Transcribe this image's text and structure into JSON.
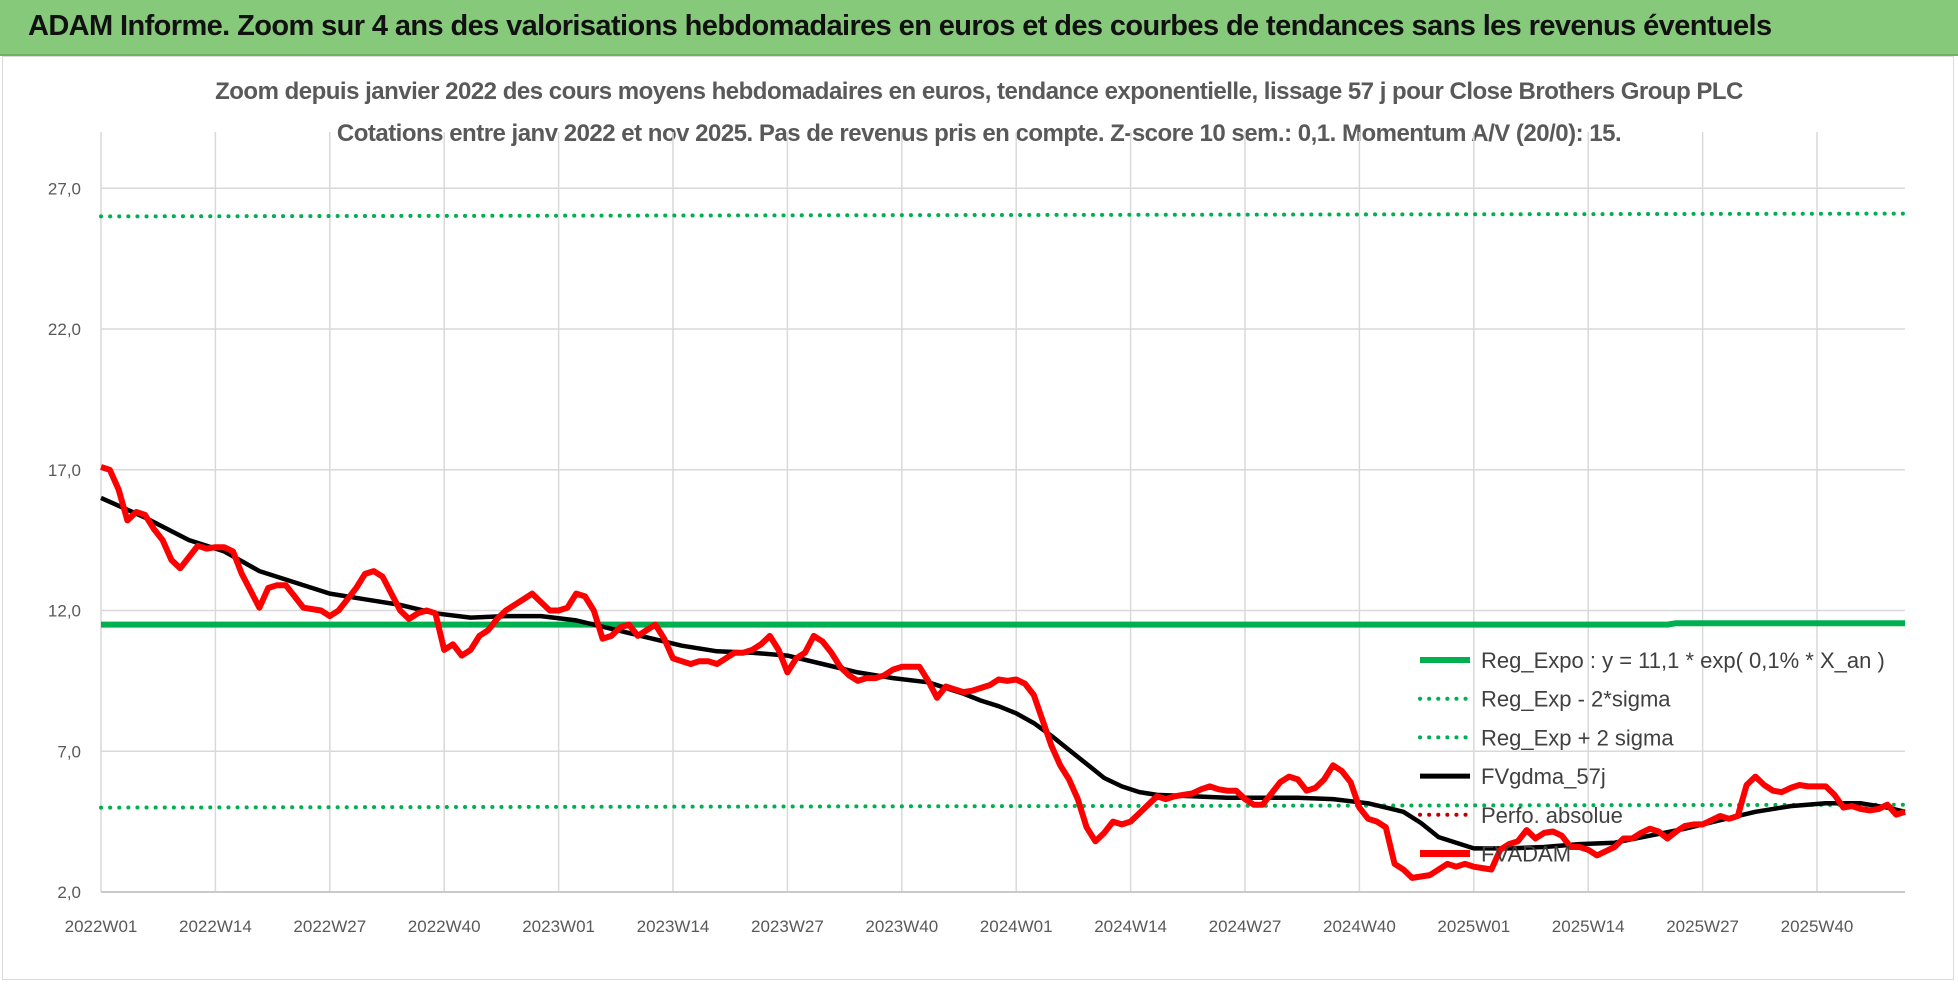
{
  "banner": {
    "title": "ADAM Informe. Zoom sur 4 ans des valorisations hebdomadaires en euros et des courbes de tendances sans les revenus éventuels"
  },
  "colors": {
    "banner_bg": "#86c97a",
    "reg_expo": "#00b050",
    "fvgdma": "#000000",
    "fvadam": "#ff0000",
    "perfo": "#c00000",
    "grid": "#d9d9d9"
  },
  "chart_data": {
    "type": "line",
    "title": "Zoom depuis janvier 2022 des cours moyens hebdomadaires en euros, tendance exponentielle, lissage 57 j pour Close Brothers Group PLC",
    "subtitle": "Cotations entre janv 2022 et nov 2025. Pas de revenus pris en compte. Z-score 10 sem.: 0,1. Momentum A/V (20/0): 15.",
    "xlabel": "",
    "ylabel": "",
    "ylim": [
      2.0,
      29.0
    ],
    "y_ticks": [
      "27,0",
      "22,0",
      "17,0",
      "12,0",
      "7,0",
      "2,0"
    ],
    "y_tick_values": [
      27,
      22,
      17,
      12,
      7,
      2
    ],
    "x_ticks": [
      "2022W01",
      "2022W14",
      "2022W27",
      "2022W40",
      "2023W01",
      "2023W14",
      "2023W27",
      "2023W40",
      "2024W01",
      "2024W14",
      "2024W27",
      "2024W40",
      "2025W01",
      "2025W14",
      "2025W27",
      "2025W40"
    ],
    "x_tick_index": [
      0,
      13,
      26,
      39,
      52,
      65,
      78,
      91,
      104,
      117,
      130,
      143,
      156,
      169,
      182,
      195
    ],
    "n_weeks": 206,
    "grid": true,
    "legend_position": "right",
    "legend": [
      "Reg_Expo : y = 11,1 * exp( 0,1% *  X_an )",
      "Reg_Exp - 2*sigma",
      "Reg_Exp + 2 sigma",
      "FVgdma_57j",
      "Perfo. absolue",
      "FVADAM"
    ],
    "series": [
      {
        "name": "Reg_Expo : y = 11,1 * exp( 0,1% *  X_an )",
        "style": "solid",
        "x": [
          0,
          178,
          179,
          205
        ],
        "values": [
          11.5,
          11.5,
          11.55,
          11.55
        ]
      },
      {
        "name": "Reg_Exp - 2*sigma",
        "style": "dotted",
        "x": [
          0,
          205
        ],
        "values": [
          5.0,
          5.1
        ]
      },
      {
        "name": "Reg_Exp + 2 sigma",
        "style": "dotted",
        "x": [
          0,
          205
        ],
        "values": [
          26.0,
          26.1
        ]
      },
      {
        "name": "FVgdma_57j",
        "style": "solid",
        "x": [
          0,
          5,
          10,
          14,
          18,
          22,
          26,
          30,
          34,
          38,
          42,
          46,
          50,
          54,
          58,
          62,
          66,
          70,
          74,
          78,
          82,
          86,
          90,
          94,
          98,
          100,
          102,
          104,
          106,
          108,
          110,
          112,
          114,
          116,
          118,
          120,
          124,
          128,
          132,
          136,
          140,
          144,
          148,
          150,
          152,
          156,
          160,
          164,
          168,
          172,
          176,
          180,
          184,
          188,
          192,
          196,
          200,
          203,
          205
        ],
        "values": [
          16.0,
          15.3,
          14.5,
          14.1,
          13.4,
          13.0,
          12.6,
          12.4,
          12.2,
          11.9,
          11.75,
          11.8,
          11.8,
          11.65,
          11.35,
          11.05,
          10.75,
          10.55,
          10.5,
          10.4,
          10.1,
          9.8,
          9.6,
          9.45,
          9.05,
          8.8,
          8.6,
          8.35,
          8.0,
          7.55,
          7.05,
          6.55,
          6.05,
          5.75,
          5.55,
          5.45,
          5.4,
          5.35,
          5.35,
          5.35,
          5.3,
          5.15,
          4.85,
          4.45,
          3.95,
          3.55,
          3.55,
          3.6,
          3.7,
          3.75,
          4.0,
          4.25,
          4.55,
          4.85,
          5.05,
          5.15,
          5.15,
          5.0,
          4.85
        ]
      },
      {
        "name": "FVADAM",
        "style": "solid",
        "x": [
          0,
          1,
          2,
          3,
          4,
          5,
          6,
          7,
          8,
          9,
          10,
          11,
          12,
          13,
          14,
          15,
          16,
          17,
          18,
          19,
          20,
          21,
          22,
          23,
          24,
          25,
          26,
          27,
          28,
          29,
          30,
          31,
          32,
          33,
          34,
          35,
          36,
          37,
          38,
          39,
          40,
          41,
          42,
          43,
          44,
          45,
          46,
          47,
          48,
          49,
          50,
          51,
          52,
          53,
          54,
          55,
          56,
          57,
          58,
          59,
          60,
          61,
          62,
          63,
          64,
          65,
          66,
          67,
          68,
          69,
          70,
          71,
          72,
          73,
          74,
          75,
          76,
          77,
          78,
          79,
          80,
          81,
          82,
          83,
          84,
          85,
          86,
          87,
          88,
          89,
          90,
          91,
          92,
          93,
          94,
          95,
          96,
          97,
          98,
          99,
          100,
          101,
          102,
          103,
          104,
          105,
          106,
          107,
          108,
          109,
          110,
          111,
          112,
          113,
          114,
          115,
          116,
          117,
          118,
          119,
          120,
          121,
          122,
          123,
          124,
          125,
          126,
          127,
          128,
          129,
          130,
          131,
          132,
          133,
          134,
          135,
          136,
          137,
          138,
          139,
          140,
          141,
          142,
          143,
          144,
          145,
          146,
          147,
          148,
          149,
          150,
          151,
          152,
          153,
          154,
          155,
          156,
          157,
          158,
          159,
          160,
          161,
          162,
          163,
          164,
          165,
          166,
          167,
          168,
          169,
          170,
          171,
          172,
          173,
          174,
          175,
          176,
          177,
          178,
          179,
          180,
          181,
          182,
          183,
          184,
          185,
          186,
          187,
          188,
          189,
          190,
          191,
          192,
          193,
          194,
          195,
          196,
          197,
          198,
          199,
          200,
          201,
          202,
          203,
          204,
          205
        ],
        "values": [
          17.1,
          17.0,
          16.3,
          15.2,
          15.5,
          15.4,
          14.9,
          14.5,
          13.8,
          13.5,
          13.9,
          14.3,
          14.2,
          14.25,
          14.25,
          14.1,
          13.3,
          12.7,
          12.1,
          12.8,
          12.9,
          12.9,
          12.5,
          12.1,
          12.05,
          12.0,
          11.8,
          12.0,
          12.4,
          12.8,
          13.3,
          13.4,
          13.2,
          12.6,
          12.0,
          11.7,
          11.9,
          12.0,
          11.9,
          10.6,
          10.8,
          10.4,
          10.6,
          11.1,
          11.3,
          11.7,
          12.0,
          12.2,
          12.4,
          12.6,
          12.3,
          12.0,
          12.0,
          12.1,
          12.6,
          12.5,
          12.0,
          11.0,
          11.1,
          11.4,
          11.5,
          11.1,
          11.3,
          11.5,
          11.0,
          10.3,
          10.2,
          10.1,
          10.2,
          10.2,
          10.1,
          10.3,
          10.5,
          10.5,
          10.6,
          10.8,
          11.1,
          10.6,
          9.8,
          10.3,
          10.5,
          11.1,
          10.9,
          10.5,
          10.0,
          9.7,
          9.5,
          9.6,
          9.6,
          9.7,
          9.9,
          10.0,
          10.0,
          10.0,
          9.5,
          8.9,
          9.3,
          9.2,
          9.1,
          9.15,
          9.25,
          9.35,
          9.55,
          9.5,
          9.55,
          9.4,
          9.0,
          8.1,
          7.2,
          6.5,
          6.0,
          5.3,
          4.3,
          3.8,
          4.1,
          4.5,
          4.4,
          4.5,
          4.8,
          5.1,
          5.4,
          5.3,
          5.4,
          5.45,
          5.5,
          5.65,
          5.75,
          5.65,
          5.6,
          5.6,
          5.3,
          5.1,
          5.1,
          5.5,
          5.9,
          6.1,
          6.0,
          5.6,
          5.7,
          6.0,
          6.5,
          6.3,
          5.9,
          5.0,
          4.6,
          4.5,
          4.3,
          3.0,
          2.8,
          2.5,
          2.55,
          2.6,
          2.8,
          3.0,
          2.9,
          3.0,
          2.9,
          2.85,
          2.8,
          3.5,
          3.7,
          3.8,
          4.2,
          3.9,
          4.1,
          4.15,
          4.0,
          3.6,
          3.6,
          3.5,
          3.3,
          3.45,
          3.6,
          3.9,
          3.9,
          4.1,
          4.25,
          4.15,
          3.9,
          4.15,
          4.35,
          4.4,
          4.4,
          4.55,
          4.7,
          4.6,
          4.7,
          5.8,
          6.1,
          5.8,
          5.6,
          5.55,
          5.7,
          5.8,
          5.75,
          5.75,
          5.75,
          5.45,
          5.0,
          5.05,
          4.95,
          4.9,
          4.95,
          5.1,
          4.75,
          4.85
        ]
      }
    ]
  }
}
